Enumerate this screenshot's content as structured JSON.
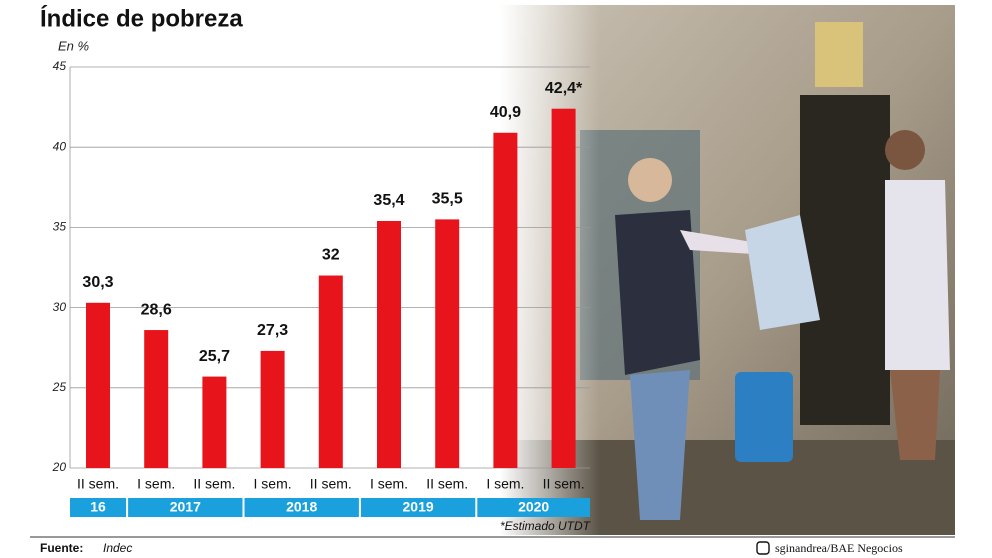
{
  "chart_data": {
    "type": "bar",
    "title": "Índice de pobreza",
    "unit_label": "En %",
    "categories": [
      "II sem.",
      "I sem.",
      "II sem.",
      "I sem.",
      "II sem.",
      "I sem.",
      "II sem.",
      "I sem.",
      "II sem."
    ],
    "years": [
      "16",
      "2017",
      "2018",
      "2019",
      "2020"
    ],
    "values": [
      30.3,
      28.6,
      25.7,
      27.3,
      32,
      35.4,
      35.5,
      40.9,
      42.4
    ],
    "value_labels": [
      "30,3",
      "28,6",
      "25,7",
      "27,3",
      "32",
      "35,4",
      "35,5",
      "40,9",
      "42,4*"
    ],
    "color": "#e8141b",
    "year_band_color": "#1aa0dc",
    "ylim": [
      20,
      45
    ],
    "yticks": [
      20,
      25,
      30,
      35,
      40,
      45
    ],
    "grid": true,
    "footnote": "*Estimado UTDT",
    "source_label": "Fuente:",
    "source": "Indec",
    "credit": "sginandrea/BAE Negocios"
  }
}
